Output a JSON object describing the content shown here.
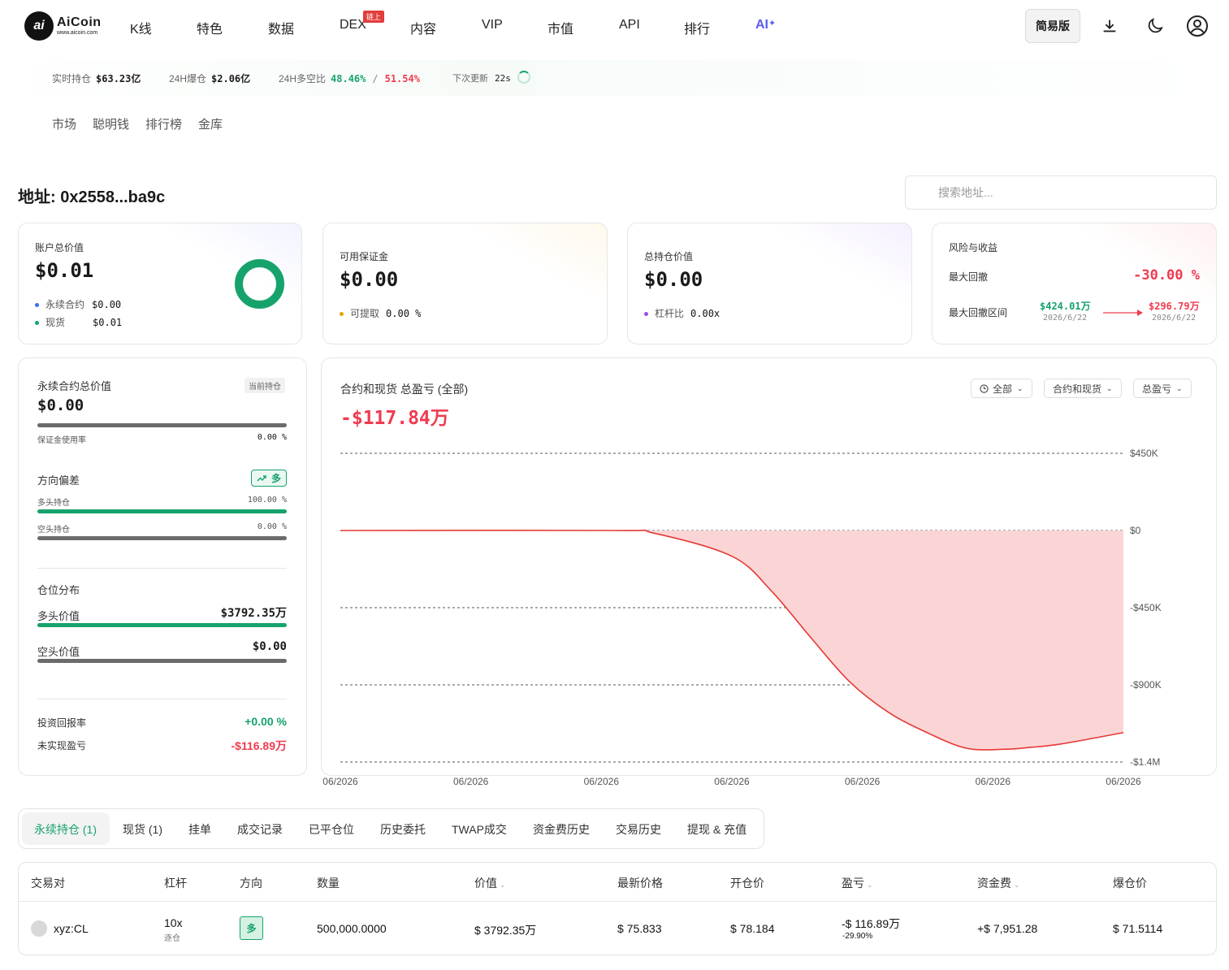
{
  "nav": {
    "logo_main": "AiCoin",
    "logo_sub": "www.aicoin.com",
    "items": [
      "K线",
      "特色",
      "数据",
      "DEX",
      "内容",
      "VIP",
      "市值",
      "API",
      "排行",
      "AI"
    ],
    "dex_badge": "链上",
    "simple_btn": "简易版"
  },
  "ticker": {
    "pos_label": "实时持仓",
    "pos_value": "$63.23亿",
    "liq_label": "24H爆仓",
    "liq_value": "$2.06亿",
    "ratio_label": "24H多空比",
    "long_pct": "48.46%",
    "sep": "/",
    "short_pct": "51.54%",
    "update_label": "下次更新",
    "update_value": "22s"
  },
  "subnav": [
    "市场",
    "聪明钱",
    "排行榜",
    "金库"
  ],
  "address": "地址: 0x2558...ba9c",
  "search_placeholder": "搜索地址...",
  "cards": {
    "total": {
      "title": "账户总价值",
      "value": "$0.01",
      "perp_label": "永续合约",
      "perp_value": "$0.00",
      "spot_label": "现货",
      "spot_value": "$0.01"
    },
    "margin": {
      "title": "可用保证金",
      "value": "$0.00",
      "withdraw_label": "可提取",
      "withdraw_value": "0.00 %"
    },
    "position": {
      "title": "总持仓价值",
      "value": "$0.00",
      "lev_label": "杠杆比",
      "lev_value": "0.00x"
    },
    "risk": {
      "title": "风险与收益",
      "dd_label": "最大回撤",
      "dd_value": "-30.00 %",
      "range_label": "最大回撤区间",
      "from_value": "$424.01万",
      "from_date": "2026/6/22",
      "to_value": "$296.79万",
      "to_date": "2026/6/22"
    }
  },
  "left": {
    "title": "永续合约总价值",
    "tag": "当前持仓",
    "value": "$0.00",
    "margin_usage_label": "保证金使用率",
    "margin_usage_value": "0.00 %",
    "bias_label": "方向偏差",
    "bias_badge": "多",
    "long_label": "多头持仓",
    "long_pct": "100.00 %",
    "short_label": "空头持仓",
    "short_pct": "0.00 %",
    "dist_label": "仓位分布",
    "long_value_label": "多头价值",
    "long_value": "$3792.35万",
    "short_value_label": "空头价值",
    "short_value": "$0.00",
    "roi_label": "投资回报率",
    "roi_value": "+0.00 %",
    "upnl_label": "未实现盈亏",
    "upnl_value": "-$116.89万"
  },
  "chart": {
    "title": "合约和现货 总盈亏 (全部)",
    "total": "-$117.84万",
    "filters": [
      "全部",
      "合约和现货",
      "总盈亏"
    ]
  },
  "chart_data": {
    "type": "area",
    "title": "合约和现货 总盈亏 (全部)",
    "x_ticks": [
      "06/2026",
      "06/2026",
      "06/2026",
      "06/2026",
      "06/2026",
      "06/2026",
      "06/2026"
    ],
    "y_ticks": [
      "$450K",
      "$0",
      "-$450K",
      "-$900K",
      "-$1.4M"
    ],
    "y_tick_values": [
      450000,
      0,
      -450000,
      -900000,
      -1350000
    ],
    "ylim": [
      -1350000,
      450000
    ],
    "x": [
      0,
      0.35,
      0.4,
      0.5,
      0.55,
      0.6,
      0.65,
      0.7,
      0.75,
      0.8,
      0.85,
      0.88,
      0.92,
      1.0
    ],
    "values": [
      0,
      0,
      -15000,
      -150000,
      -350000,
      -620000,
      -880000,
      -1060000,
      -1180000,
      -1270000,
      -1275000,
      -1265000,
      -1245000,
      -1178400
    ],
    "grid": true,
    "colors": {
      "line": "#e53935",
      "fill": "#fbd5d5"
    }
  },
  "tabs": [
    "永续持仓 (1)",
    "现货 (1)",
    "挂单",
    "成交记录",
    "已平仓位",
    "历史委托",
    "TWAP成交",
    "资金费历史",
    "交易历史",
    "提现 & 充值"
  ],
  "table": {
    "headers": [
      "交易对",
      "杠杆",
      "方向",
      "数量",
      "价值",
      "最新价格",
      "开仓价",
      "盈亏",
      "资金费",
      "爆仓价"
    ],
    "rows": [
      {
        "pair": "xyz:CL",
        "lev": "10x",
        "lev_mode": "逐仓",
        "side": "多",
        "qty": "500,000.0000",
        "value": "$ 3792.35万",
        "last": "$ 75.833",
        "entry": "$ 78.184",
        "pnl": "-$ 116.89万",
        "pnl_pct": "-29.90%",
        "funding": "+$ 7,951.28",
        "liq": "$ 71.5114"
      }
    ]
  }
}
